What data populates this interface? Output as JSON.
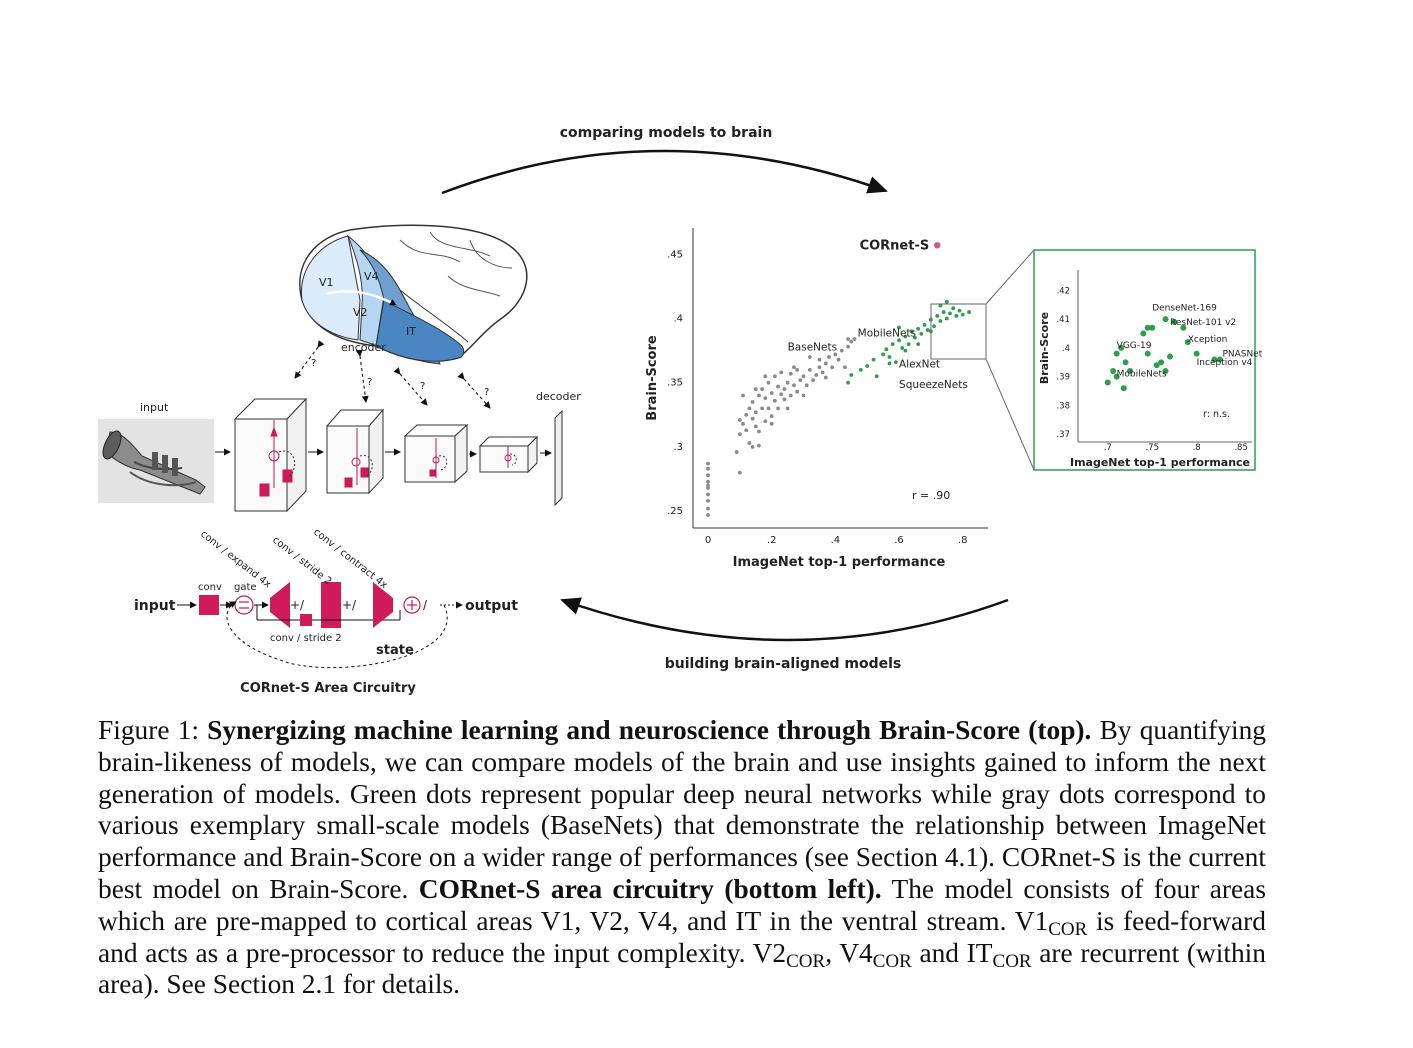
{
  "arrows": {
    "top": "comparing models to brain",
    "bottom": "building brain-aligned models"
  },
  "brain": {
    "regions": [
      "V1",
      "V2",
      "V4",
      "IT"
    ],
    "encoder_label": "encoder",
    "question": "?"
  },
  "pipeline": {
    "input_label": "input",
    "decoder_label": "decoder"
  },
  "circuit": {
    "title": "CORnet-S Area Circuitry",
    "input": "input",
    "output": "output",
    "state": "state",
    "conv": "conv",
    "gate": "gate",
    "diag_labels": [
      "conv / expand 4x",
      "conv / stride 2",
      "conv / contract 4x"
    ],
    "bottom_conv": "conv / stride 2",
    "colors": {
      "block": "#d01a5a",
      "accent": "#c2185b"
    }
  },
  "chart_data": [
    {
      "type": "scatter",
      "xlabel": "ImageNet top-1 performance",
      "ylabel": "Brain-Score",
      "xticks": [
        "0",
        ".2",
        ".4",
        ".6",
        ".8"
      ],
      "yticks": [
        ".25",
        ".3",
        ".35",
        ".4",
        ".45"
      ],
      "xlim": [
        0,
        0.87
      ],
      "ylim": [
        0.24,
        0.465
      ],
      "annotation": "r = .90",
      "highlight": {
        "name": "CORnet-S",
        "x": 0.72,
        "y": 0.457,
        "color": "#e0507a"
      },
      "labels": [
        {
          "text": "BaseNets",
          "x": 0.25,
          "y": 0.375
        },
        {
          "text": "MobileNets",
          "x": 0.47,
          "y": 0.386
        },
        {
          "text": "AlexNet",
          "x": 0.6,
          "y": 0.362
        },
        {
          "text": "SqueezeNets",
          "x": 0.6,
          "y": 0.346
        }
      ],
      "series": [
        {
          "name": "BaseNets",
          "color": "#8a8a8a",
          "points": [
            [
              0.0,
              0.252
            ],
            [
              0.0,
              0.258
            ],
            [
              0.0,
              0.263
            ],
            [
              0.0,
              0.268
            ],
            [
              0.0,
              0.273
            ],
            [
              0.0,
              0.278
            ],
            [
              0.0,
              0.283
            ],
            [
              0.0,
              0.287
            ],
            [
              0.0,
              0.247
            ],
            [
              0.0,
              0.27
            ],
            [
              0.1,
              0.31
            ],
            [
              0.11,
              0.318
            ],
            [
              0.12,
              0.313
            ],
            [
              0.12,
              0.325
            ],
            [
              0.13,
              0.33
            ],
            [
              0.13,
              0.303
            ],
            [
              0.14,
              0.322
            ],
            [
              0.14,
              0.335
            ],
            [
              0.15,
              0.316
            ],
            [
              0.15,
              0.327
            ],
            [
              0.16,
              0.34
            ],
            [
              0.16,
              0.312
            ],
            [
              0.17,
              0.33
            ],
            [
              0.17,
              0.345
            ],
            [
              0.18,
              0.32
            ],
            [
              0.18,
              0.338
            ],
            [
              0.19,
              0.35
            ],
            [
              0.19,
              0.33
            ],
            [
              0.2,
              0.342
            ],
            [
              0.2,
              0.324
            ],
            [
              0.21,
              0.355
            ],
            [
              0.21,
              0.336
            ],
            [
              0.22,
              0.347
            ],
            [
              0.22,
              0.33
            ],
            [
              0.23,
              0.358
            ],
            [
              0.24,
              0.345
            ],
            [
              0.24,
              0.337
            ],
            [
              0.25,
              0.35
            ],
            [
              0.26,
              0.34
            ],
            [
              0.26,
              0.357
            ],
            [
              0.27,
              0.348
            ],
            [
              0.28,
              0.36
            ],
            [
              0.28,
              0.343
            ],
            [
              0.29,
              0.352
            ],
            [
              0.3,
              0.355
            ],
            [
              0.31,
              0.348
            ],
            [
              0.32,
              0.36
            ],
            [
              0.33,
              0.352
            ],
            [
              0.34,
              0.356
            ],
            [
              0.35,
              0.362
            ],
            [
              0.36,
              0.358
            ],
            [
              0.37,
              0.365
            ],
            [
              0.38,
              0.37
            ],
            [
              0.4,
              0.372
            ],
            [
              0.42,
              0.375
            ],
            [
              0.44,
              0.378
            ],
            [
              0.45,
              0.382
            ],
            [
              0.46,
              0.384
            ],
            [
              0.09,
              0.296
            ],
            [
              0.1,
              0.321
            ],
            [
              0.16,
              0.301
            ],
            [
              0.2,
              0.318
            ],
            [
              0.23,
              0.341
            ],
            [
              0.25,
              0.33
            ],
            [
              0.3,
              0.34
            ],
            [
              0.35,
              0.368
            ],
            [
              0.37,
              0.354
            ],
            [
              0.41,
              0.368
            ],
            [
              0.43,
              0.362
            ],
            [
              0.44,
              0.384
            ],
            [
              0.15,
              0.345
            ],
            [
              0.18,
              0.355
            ],
            [
              0.27,
              0.362
            ],
            [
              0.1,
              0.28
            ],
            [
              0.14,
              0.3
            ],
            [
              0.11,
              0.34
            ],
            [
              0.32,
              0.37
            ],
            [
              0.39,
              0.362
            ]
          ]
        },
        {
          "name": "Models",
          "color": "#2e9e4a",
          "points": [
            [
              0.44,
              0.35
            ],
            [
              0.45,
              0.356
            ],
            [
              0.48,
              0.36
            ],
            [
              0.5,
              0.363
            ],
            [
              0.52,
              0.368
            ],
            [
              0.53,
              0.355
            ],
            [
              0.55,
              0.372
            ],
            [
              0.56,
              0.376
            ],
            [
              0.57,
              0.37
            ],
            [
              0.58,
              0.38
            ],
            [
              0.59,
              0.366
            ],
            [
              0.6,
              0.383
            ],
            [
              0.61,
              0.377
            ],
            [
              0.62,
              0.386
            ],
            [
              0.63,
              0.38
            ],
            [
              0.64,
              0.39
            ],
            [
              0.65,
              0.385
            ],
            [
              0.66,
              0.392
            ],
            [
              0.67,
              0.388
            ],
            [
              0.68,
              0.395
            ],
            [
              0.69,
              0.391
            ],
            [
              0.7,
              0.399
            ],
            [
              0.71,
              0.394
            ],
            [
              0.72,
              0.402
            ],
            [
              0.73,
              0.398
            ],
            [
              0.74,
              0.405
            ],
            [
              0.75,
              0.4
            ],
            [
              0.76,
              0.404
            ],
            [
              0.77,
              0.408
            ],
            [
              0.78,
              0.402
            ],
            [
              0.79,
              0.406
            ],
            [
              0.8,
              0.403
            ],
            [
              0.82,
              0.405
            ],
            [
              0.75,
              0.413
            ],
            [
              0.73,
              0.41
            ],
            [
              0.62,
              0.375
            ],
            [
              0.57,
              0.365
            ],
            [
              0.66,
              0.38
            ],
            [
              0.7,
              0.39
            ],
            [
              0.6,
              0.393
            ]
          ]
        }
      ]
    },
    {
      "type": "scatter",
      "xlabel": "ImageNet top-1 performance",
      "ylabel": "Brain-Score",
      "xticks": [
        ".7",
        ".75",
        ".8",
        ".85"
      ],
      "yticks": [
        ".37",
        ".38",
        ".39",
        ".4",
        ".41",
        ".42"
      ],
      "xlim": [
        0.68,
        0.86
      ],
      "ylim": [
        0.368,
        0.425
      ],
      "annotation": "r: n.s.",
      "labels": [
        {
          "text": "DenseNet-169",
          "x": 0.75,
          "y": 0.413
        },
        {
          "text": "ResNet-101 v2",
          "x": 0.77,
          "y": 0.408
        },
        {
          "text": "Xception",
          "x": 0.79,
          "y": 0.402
        },
        {
          "text": "PNASNet",
          "x": 0.829,
          "y": 0.397
        },
        {
          "text": "VGG-19",
          "x": 0.71,
          "y": 0.4
        },
        {
          "text": "Inception v4",
          "x": 0.8,
          "y": 0.394
        },
        {
          "text": "MobileNets",
          "x": 0.71,
          "y": 0.39
        }
      ],
      "series": [
        {
          "name": "Models",
          "color": "#2e9e4a",
          "points": [
            [
              0.71,
              0.39
            ],
            [
              0.715,
              0.4
            ],
            [
              0.72,
              0.395
            ],
            [
              0.71,
              0.398
            ],
            [
              0.706,
              0.392
            ],
            [
              0.725,
              0.392
            ],
            [
              0.7,
              0.388
            ],
            [
              0.718,
              0.386
            ],
            [
              0.745,
              0.398
            ],
            [
              0.74,
              0.405
            ],
            [
              0.76,
              0.395
            ],
            [
              0.755,
              0.394
            ],
            [
              0.745,
              0.407
            ],
            [
              0.765,
              0.392
            ],
            [
              0.77,
              0.397
            ],
            [
              0.75,
              0.407
            ],
            [
              0.765,
              0.41
            ],
            [
              0.775,
              0.409
            ],
            [
              0.785,
              0.407
            ],
            [
              0.79,
              0.402
            ],
            [
              0.8,
              0.398
            ],
            [
              0.82,
              0.396
            ],
            [
              0.826,
              0.396
            ]
          ]
        }
      ]
    }
  ],
  "caption": {
    "part1": "Figure 1: ",
    "bold1": "Synergizing machine learning and neuroscience through Brain-Score (top).",
    "part2": " By quantifying brain-likeness of models, we can compare models of the brain and use insights gained to inform the next generation of models. Green dots represent popular deep neural networks while gray dots correspond to various exemplary small-scale models (BaseNets) that demonstrate the relationship between ImageNet performance and Brain-Score on a wider range of performances (see Section 4.1). CORnet-S is the current best model on Brain-Score. ",
    "bold2": "CORnet-S area circuitry (bottom left).",
    "part3": " The model consists of four areas which are pre-mapped to cortical areas V1, V2, V4, and IT in the ventral stream. V1",
    "sub": "COR",
    "part4": " is feed-forward and acts as a pre-processor to reduce the input complexity. V2",
    "part5": ", V4",
    "part6": " and IT",
    "part7": " are recurrent (within area). See Section 2.1 for details."
  }
}
